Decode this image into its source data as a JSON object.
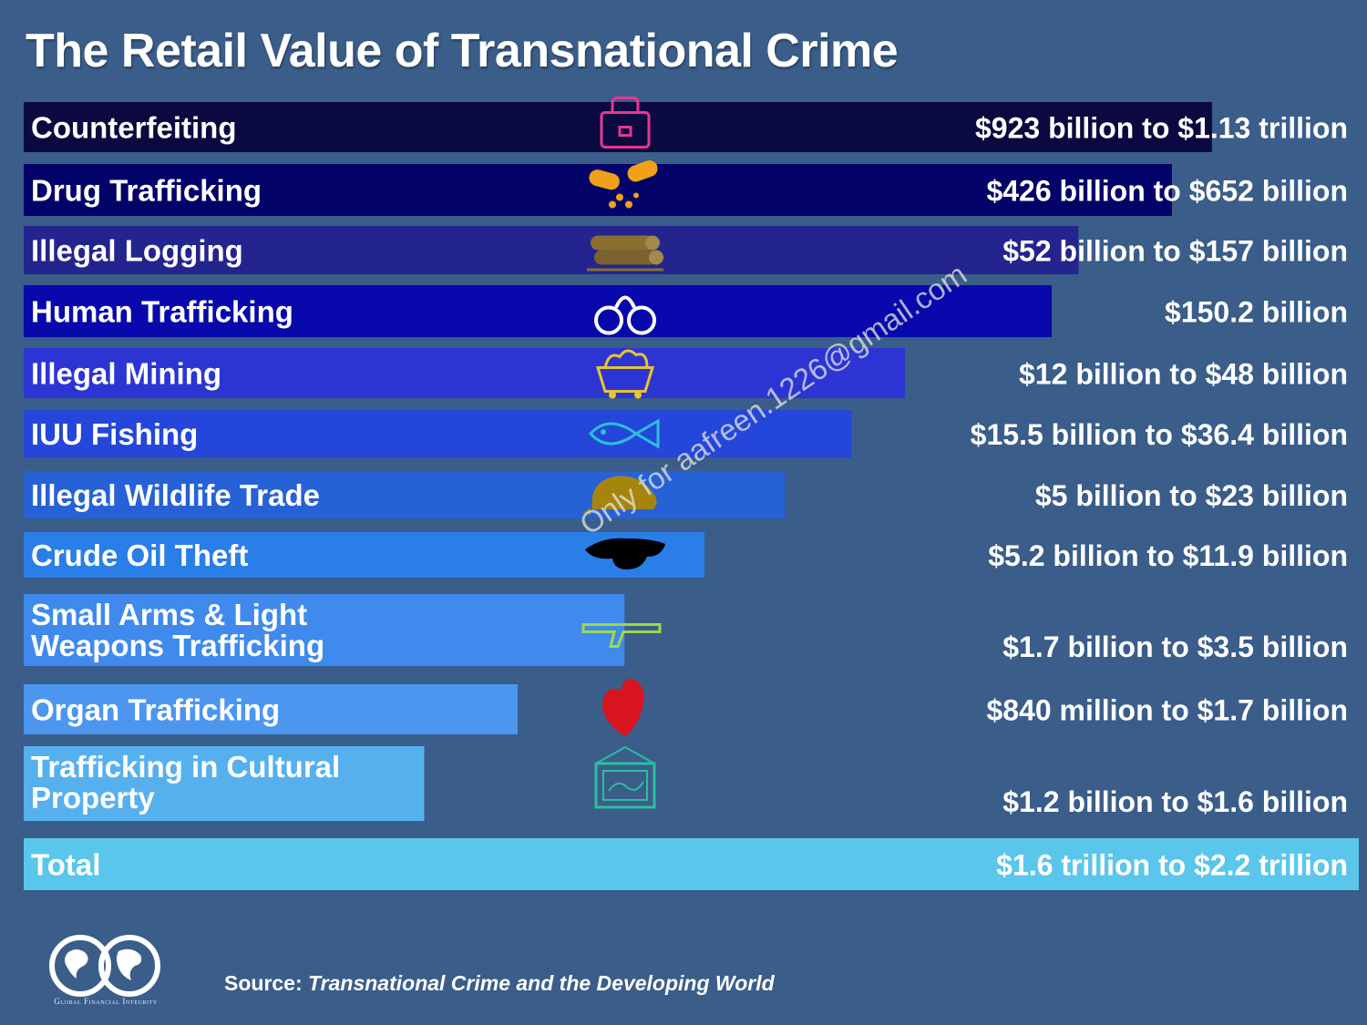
{
  "header": {
    "title": "The Retail Value of Transnational Crime"
  },
  "watermark": "Only for aafreen.1226@gmail.com",
  "footer": {
    "logo_text": "Global Financial Integrity",
    "source_prefix": "Source:",
    "source_title": "Transnational Crime and the Developing World"
  },
  "colors": {
    "background": "#3a5d8a",
    "bars": [
      "#0a0a40",
      "#020268",
      "#23248e",
      "#0808ac",
      "#2c35d4",
      "#2446da",
      "#2662d6",
      "#2a7ee8",
      "#3f8aec",
      "#4c96f0",
      "#56b0ee",
      "#5bc6ec"
    ]
  },
  "chart_data": {
    "type": "bar",
    "orientation": "horizontal",
    "title": "The Retail Value of Transnational Crime",
    "categories": [
      "Counterfeiting",
      "Drug Trafficking",
      "Illegal Logging",
      "Human Trafficking",
      "Illegal Mining",
      "IUU Fishing",
      "Illegal Wildlife Trade",
      "Crude Oil Theft",
      "Small Arms & Light Weapons Trafficking",
      "Organ Trafficking",
      "Trafficking in Cultural Property",
      "Total"
    ],
    "category_lines": [
      [
        "Counterfeiting"
      ],
      [
        "Drug Trafficking"
      ],
      [
        "Illegal Logging"
      ],
      [
        "Human Trafficking"
      ],
      [
        "Illegal Mining"
      ],
      [
        "IUU Fishing"
      ],
      [
        "Illegal Wildlife Trade"
      ],
      [
        "Crude Oil Theft"
      ],
      [
        "Small Arms & Light",
        "Weapons Trafficking"
      ],
      [
        "Organ Trafficking"
      ],
      [
        "Trafficking in Cultural",
        "Property"
      ],
      [
        "Total"
      ]
    ],
    "value_labels": [
      "$923 billion to $1.13 trillion",
      "$426 billion to $652 billion",
      "$52 billion to $157 billion",
      "$150.2 billion",
      "$12 billion to $48 billion",
      "$15.5 billion to $36.4 billion",
      "$5 billion to $23 billion",
      "$5.2 billion to $11.9 billion",
      "$1.7 billion to $3.5 billion",
      "$840 million to $1.7 billion",
      "$1.2 billion to $1.6 billion",
      "$1.6 trillion to $2.2 trillion"
    ],
    "values": [
      89,
      86,
      79,
      77,
      66,
      62,
      57,
      51,
      45,
      37,
      30,
      100
    ],
    "value_scale": "relative bar length, percent of Total bar",
    "icons": [
      "handbag-icon",
      "pills-icon",
      "logs-icon",
      "handcuffs-icon",
      "mine-cart-icon",
      "fish-icon",
      "pangolin-icon",
      "oil-spill-icon",
      "rifle-icon",
      "heart-organ-icon",
      "painting-icon",
      ""
    ]
  }
}
